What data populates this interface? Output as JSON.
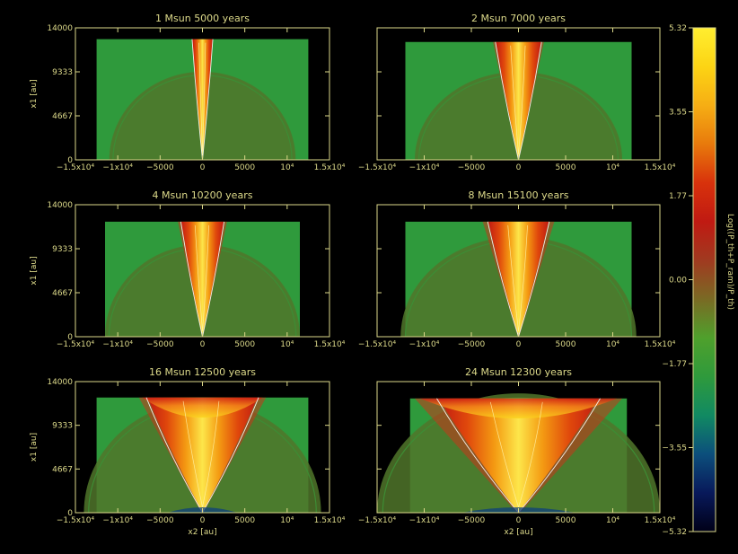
{
  "chart_data": [
    {
      "type": "heatmap",
      "title": "1 Msun 5000 years",
      "xlabel": "",
      "ylabel": "x1 [au]",
      "xlim": [
        -15000,
        15000
      ],
      "ylim": [
        0,
        14000
      ],
      "x_ticks": [
        "−1.5x10⁴",
        "−1x10⁴",
        "−5000",
        "0",
        "5000",
        "10⁴",
        "1.5x10⁴"
      ],
      "y_ticks": [
        "0",
        "4667",
        "9333",
        "14000"
      ],
      "grid_xlim": [
        -12500,
        12500
      ],
      "grid_ymax": 12800,
      "jet_half_width_top": 1200,
      "outflow_half_width_top": 1200,
      "shell_radius": 11000
    },
    {
      "type": "heatmap",
      "title": "2 Msun 7000 years",
      "xlabel": "",
      "ylabel": "",
      "xlim": [
        -15000,
        15000
      ],
      "ylim": [
        0,
        14000
      ],
      "x_ticks": [
        "−1.5x10⁴",
        "−1x10⁴",
        "−5000",
        "0",
        "5000",
        "10⁴",
        "1.5x10⁴"
      ],
      "y_ticks": [],
      "grid_xlim": [
        -12000,
        12000
      ],
      "grid_ymax": 12500,
      "jet_half_width_top": 2400,
      "outflow_half_width_top": 2700,
      "shell_radius": 11000
    },
    {
      "type": "heatmap",
      "title": "4 Msun 10200 years",
      "xlabel": "",
      "ylabel": "x1 [au]",
      "xlim": [
        -15000,
        15000
      ],
      "ylim": [
        0,
        14000
      ],
      "x_ticks": [
        "−1.5x10⁴",
        "−1x10⁴",
        "−5000",
        "0",
        "5000",
        "10⁴",
        "1.5x10⁴"
      ],
      "y_ticks": [
        "0",
        "4667",
        "9333",
        "14000"
      ],
      "grid_xlim": [
        -11500,
        11500
      ],
      "grid_ymax": 12200,
      "jet_half_width_top": 2500,
      "outflow_half_width_top": 2900,
      "shell_radius": 11500
    },
    {
      "type": "heatmap",
      "title": "8 Msun 15100 years",
      "xlabel": "",
      "ylabel": "",
      "xlim": [
        -15000,
        15000
      ],
      "ylim": [
        0,
        14000
      ],
      "x_ticks": [
        "−1.5x10⁴",
        "−1x10⁴",
        "−5000",
        "0",
        "5000",
        "10⁴",
        "1.5x10⁴"
      ],
      "y_ticks": [],
      "grid_xlim": [
        -12000,
        12000
      ],
      "grid_ymax": 12200,
      "jet_half_width_top": 3200,
      "outflow_half_width_top": 3800,
      "shell_radius": 12500
    },
    {
      "type": "heatmap",
      "title": "16 Msun 12500 years",
      "xlabel": "x2 [au]",
      "ylabel": "x1 [au]",
      "xlim": [
        -15000,
        15000
      ],
      "ylim": [
        0,
        14000
      ],
      "x_ticks": [
        "−1.5x10⁴",
        "−1x10⁴",
        "−5000",
        "0",
        "5000",
        "10⁴",
        "1.5x10⁴"
      ],
      "y_ticks": [
        "0",
        "4667",
        "9333",
        "14000"
      ],
      "grid_xlim": [
        -12500,
        12500
      ],
      "grid_ymax": 12300,
      "jet_half_width_top": 6500,
      "outflow_half_width_top": 7500,
      "shell_radius": 14000
    },
    {
      "type": "heatmap",
      "title": "24 Msun 12300 years",
      "xlabel": "x2 [au]",
      "ylabel": "",
      "xlim": [
        -15000,
        15000
      ],
      "ylim": [
        0,
        14000
      ],
      "x_ticks": [
        "−1.5x10⁴",
        "−1x10⁴",
        "−5000",
        "0",
        "5000",
        "10⁴",
        "1.5x10⁴"
      ],
      "y_ticks": [],
      "grid_xlim": [
        -11500,
        11500
      ],
      "grid_ymax": 12200,
      "jet_half_width_top": 8500,
      "outflow_half_width_top": 11000,
      "shell_radius": 15000
    }
  ],
  "colorbar": {
    "label": "Log((P_th+P_ram)/P_th)",
    "ticks": [
      "5.32",
      "3.55",
      "1.77",
      "0.00",
      "−1.77",
      "−3.55",
      "−5.32"
    ],
    "range": [
      -5.32,
      5.32
    ],
    "colors": [
      "#000018",
      "#08195a",
      "#0c4f7c",
      "#118a62",
      "#2f9a3c",
      "#4fa02c",
      "#7a6a24",
      "#a03a20",
      "#c01a12",
      "#d8320c",
      "#e87a0c",
      "#f6ae14",
      "#fcd414",
      "#ffee30"
    ]
  }
}
